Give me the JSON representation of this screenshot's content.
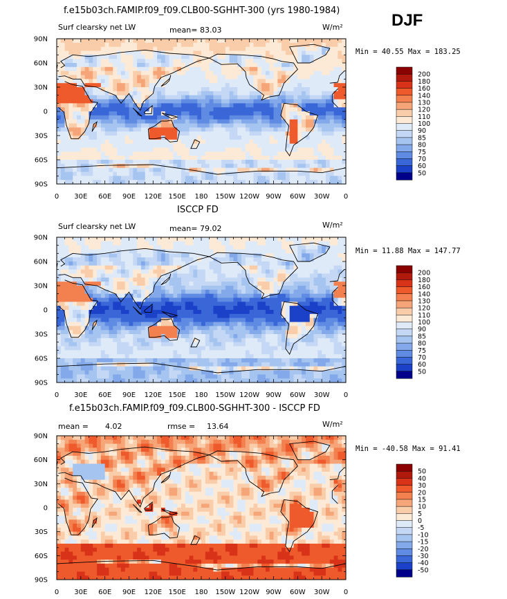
{
  "season": "DJF",
  "units_label": "W/m²",
  "panels": [
    {
      "title": "f.e15b03ch.FAMIP.f09_f09.CLB00-SGHHT-300 (yrs 1980-1984)",
      "field_label": "Surf clearsky net LW",
      "stat1_label": "mean=",
      "stat1_value": "83.03",
      "stat2_label": "",
      "stat2_value": "",
      "minmax": "Min =  40.55 Max = 183.25"
    },
    {
      "title": "ISCCP FD",
      "field_label": "Surf clearsky net LW",
      "stat1_label": "mean=",
      "stat1_value": "79.02",
      "stat2_label": "",
      "stat2_value": "",
      "minmax": "Min =  11.88 Max = 147.77"
    },
    {
      "title": "f.e15b03ch.FAMIP.f09_f09.CLB00-SGHHT-300 - ISCCP FD",
      "field_label": "",
      "stat1_label": "mean =",
      "stat1_value": "4.02",
      "stat2_label": "rmse =",
      "stat2_value": "13.64",
      "minmax": "Min = -40.58 Max =  91.41"
    }
  ],
  "chart_data": {
    "type": "heatmap",
    "map_projection": "cylindrical equidistant, 0 to 360 longitude",
    "x_tick_labels": [
      "0",
      "30E",
      "60E",
      "90E",
      "120E",
      "150E",
      "180",
      "150W",
      "120W",
      "90W",
      "60W",
      "30W",
      "0"
    ],
    "y_tick_labels": [
      "90N",
      "60N",
      "30N",
      "0",
      "30S",
      "60S",
      "90S"
    ],
    "colorbars": [
      {
        "levels": [
          "200",
          "180",
          "160",
          "140",
          "130",
          "120",
          "110",
          "100",
          "90",
          "85",
          "80",
          "75",
          "70",
          "60",
          "50"
        ],
        "colors": [
          "#8b0000",
          "#b2190d",
          "#d83318",
          "#ef5a2c",
          "#f3804f",
          "#f6a578",
          "#f9cdaa",
          "#fce9d6",
          "#dfeaf8",
          "#c4d8f5",
          "#a6c4f0",
          "#83a9ea",
          "#5f8be3",
          "#3a67d8",
          "#1b41c8",
          "#00008b"
        ]
      },
      {
        "levels": [
          "200",
          "180",
          "160",
          "140",
          "130",
          "120",
          "110",
          "100",
          "90",
          "85",
          "80",
          "75",
          "70",
          "60",
          "50"
        ],
        "colors": [
          "#8b0000",
          "#b2190d",
          "#d83318",
          "#ef5a2c",
          "#f3804f",
          "#f6a578",
          "#f9cdaa",
          "#fce9d6",
          "#dfeaf8",
          "#c4d8f5",
          "#a6c4f0",
          "#83a9ea",
          "#5f8be3",
          "#3a67d8",
          "#1b41c8",
          "#00008b"
        ]
      },
      {
        "levels": [
          "50",
          "40",
          "30",
          "20",
          "15",
          "10",
          "5",
          "0",
          "-5",
          "-10",
          "-15",
          "-20",
          "-30",
          "-40",
          "-50"
        ],
        "colors": [
          "#8b0000",
          "#b2190d",
          "#d83318",
          "#ef5a2c",
          "#f3804f",
          "#f6a578",
          "#f9cdaa",
          "#fce9d6",
          "#dfeaf8",
          "#c4d8f5",
          "#a6c4f0",
          "#83a9ea",
          "#5f8be3",
          "#3a67d8",
          "#1b41c8",
          "#00008b"
        ]
      }
    ]
  }
}
